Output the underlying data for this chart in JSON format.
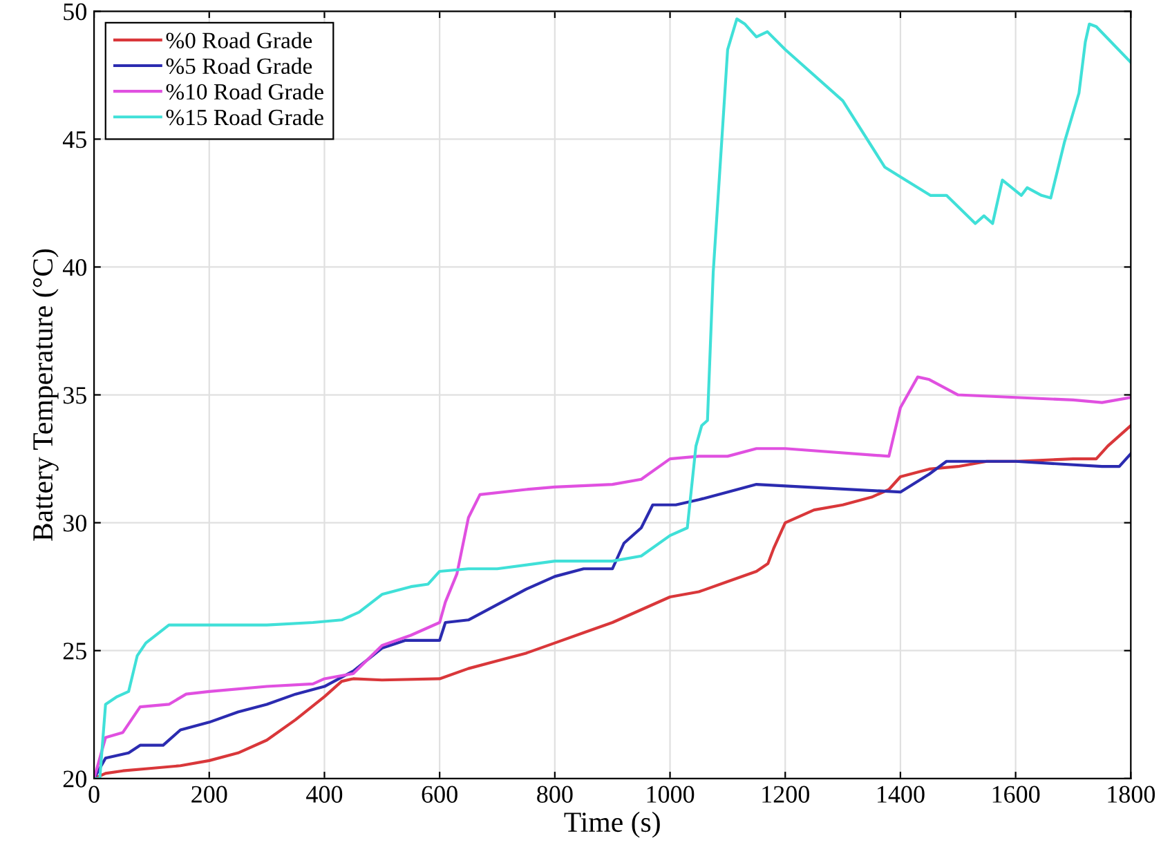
{
  "chart_data": {
    "type": "line",
    "xlabel": "Time (s)",
    "ylabel": "Battery Temperature (°C)",
    "xlim": [
      0,
      1800
    ],
    "ylim": [
      20,
      50
    ],
    "xticks": [
      0,
      200,
      400,
      600,
      800,
      1000,
      1200,
      1400,
      1600,
      1800
    ],
    "yticks": [
      20,
      25,
      30,
      35,
      40,
      45,
      50
    ],
    "grid": true,
    "legend": "top left",
    "marker": "none",
    "line_style": "solid",
    "series": [
      {
        "name": "%0 Road Grade",
        "color": "#d9373a",
        "x": [
          0,
          20,
          50,
          100,
          150,
          200,
          250,
          300,
          350,
          400,
          430,
          450,
          500,
          600,
          650,
          700,
          750,
          800,
          850,
          900,
          950,
          1000,
          1050,
          1100,
          1150,
          1170,
          1180,
          1200,
          1250,
          1300,
          1350,
          1380,
          1400,
          1450,
          1500,
          1550,
          1600,
          1700,
          1740,
          1760,
          1800
        ],
        "values": [
          20,
          20.2,
          20.3,
          20.4,
          20.5,
          20.7,
          21.0,
          21.5,
          22.3,
          23.2,
          23.8,
          23.9,
          23.85,
          23.9,
          24.3,
          24.6,
          24.9,
          25.3,
          25.7,
          26.1,
          26.6,
          27.1,
          27.3,
          27.7,
          28.1,
          28.4,
          29.0,
          30.0,
          30.5,
          30.7,
          31.0,
          31.3,
          31.8,
          32.1,
          32.2,
          32.4,
          32.4,
          32.5,
          32.5,
          33.0,
          33.8
        ]
      },
      {
        "name": "%5 Road Grade",
        "color": "#2b2bb0",
        "x": [
          0,
          20,
          60,
          80,
          120,
          150,
          200,
          250,
          300,
          350,
          400,
          450,
          500,
          540,
          600,
          610,
          650,
          700,
          750,
          800,
          850,
          900,
          920,
          950,
          970,
          1010,
          1050,
          1100,
          1150,
          1400,
          1450,
          1480,
          1550,
          1600,
          1750,
          1780,
          1800
        ],
        "values": [
          20,
          20.8,
          21.0,
          21.3,
          21.3,
          21.9,
          22.2,
          22.6,
          22.9,
          23.3,
          23.6,
          24.2,
          25.1,
          25.4,
          25.4,
          26.1,
          26.2,
          26.8,
          27.4,
          27.9,
          28.2,
          28.2,
          29.2,
          29.8,
          30.7,
          30.7,
          30.9,
          31.2,
          31.5,
          31.2,
          31.9,
          32.4,
          32.4,
          32.4,
          32.2,
          32.2,
          32.7
        ]
      },
      {
        "name": "%10 Road Grade",
        "color": "#e050e0",
        "x": [
          0,
          20,
          50,
          80,
          130,
          160,
          200,
          300,
          380,
          400,
          450,
          500,
          550,
          600,
          610,
          630,
          650,
          670,
          750,
          800,
          900,
          950,
          1000,
          1050,
          1100,
          1150,
          1200,
          1380,
          1400,
          1430,
          1450,
          1500,
          1600,
          1700,
          1750,
          1800
        ],
        "values": [
          20,
          21.6,
          21.8,
          22.8,
          22.9,
          23.3,
          23.4,
          23.6,
          23.7,
          23.9,
          24.1,
          25.2,
          25.6,
          26.1,
          26.9,
          28.0,
          30.2,
          31.1,
          31.3,
          31.4,
          31.5,
          31.7,
          32.5,
          32.6,
          32.6,
          32.9,
          32.9,
          32.6,
          34.5,
          35.7,
          35.6,
          35.0,
          34.9,
          34.8,
          34.7,
          34.9
        ]
      },
      {
        "name": "%15 Road Grade",
        "color": "#40e0d8",
        "x": [
          0,
          10,
          20,
          40,
          60,
          75,
          90,
          130,
          300,
          380,
          430,
          460,
          500,
          550,
          580,
          600,
          650,
          700,
          800,
          900,
          950,
          1000,
          1030,
          1045,
          1055,
          1065,
          1075,
          1090,
          1100,
          1116,
          1130,
          1150,
          1169,
          1200,
          1300,
          1373,
          1452,
          1480,
          1530,
          1545,
          1560,
          1577,
          1610,
          1620,
          1645,
          1661,
          1685,
          1710,
          1721,
          1728,
          1740,
          1800
        ],
        "values": [
          20,
          20,
          22.9,
          23.2,
          23.4,
          24.8,
          25.3,
          26.0,
          26.0,
          26.1,
          26.2,
          26.5,
          27.2,
          27.5,
          27.6,
          28.1,
          28.2,
          28.2,
          28.5,
          28.5,
          28.7,
          29.5,
          29.8,
          33.0,
          33.8,
          34.0,
          39.8,
          45.0,
          48.5,
          49.7,
          49.5,
          49.0,
          49.2,
          48.5,
          46.5,
          43.9,
          42.8,
          42.8,
          41.7,
          42.0,
          41.7,
          43.4,
          42.8,
          43.1,
          42.8,
          42.7,
          44.9,
          46.8,
          48.8,
          49.5,
          49.4,
          48.0
        ]
      }
    ]
  }
}
